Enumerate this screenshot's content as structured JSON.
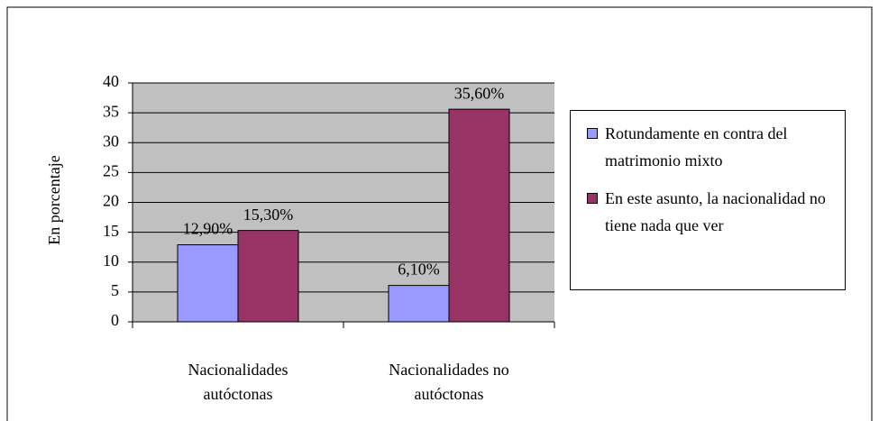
{
  "chart_data": {
    "type": "bar",
    "y_label": "En porcentaje",
    "categories": [
      "Nacionalidades autóctonas",
      "Nacionalidades no autóctonas"
    ],
    "series": [
      {
        "name": "Rotundamente en contra del matrimonio mixto",
        "color": "#9999ff",
        "values": [
          12.9,
          6.1
        ],
        "value_labels": [
          "12,90%",
          "6,10%"
        ]
      },
      {
        "name": "En este asunto, la nacionalidad no tiene nada que ver",
        "color": "#993366",
        "values": [
          15.3,
          35.6
        ],
        "value_labels": [
          "15,30%",
          "35,60%"
        ]
      }
    ],
    "ylim": [
      0,
      40
    ],
    "yticks": [
      0,
      5,
      10,
      15,
      20,
      25,
      30,
      35,
      40
    ],
    "grid": true,
    "legend": "right"
  }
}
